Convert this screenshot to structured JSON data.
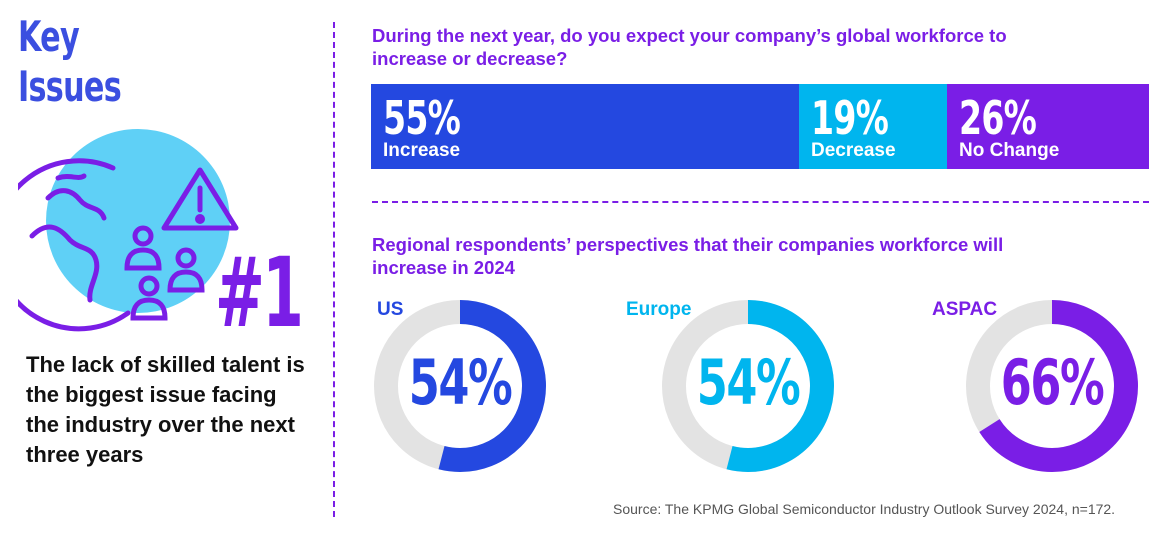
{
  "header": {
    "title_line1": "Key",
    "title_line2": "Issues"
  },
  "key_issue": {
    "rank": "#1",
    "text": "The lack of skilled talent is the biggest issue facing the industry over the next three years"
  },
  "colors": {
    "blue": "#2448e0",
    "cyan": "#00b5ee",
    "purple": "#7a1ee6",
    "track": "#e3e3e3",
    "light_cyan": "#5fd0f6"
  },
  "icons": [
    "globe-icon",
    "warning-icon",
    "people-icon"
  ],
  "question1": "During the next year, do you expect your company’s global workforce to increase or decrease?",
  "question2": "Regional respondents’ perspectives that their companies workforce will increase in 2024",
  "source": "Source: The KPMG Global Semiconductor Industry Outlook Survey 2024, n=172.",
  "chart_data": [
    {
      "type": "bar",
      "stacked": true,
      "orientation": "horizontal",
      "title": "During the next year, do you expect your company’s global workforce to increase or decrease?",
      "categories": [
        "Increase",
        "Decrease",
        "No Change"
      ],
      "values": [
        55,
        19,
        26
      ],
      "value_labels": [
        "55%",
        "19%",
        "26%"
      ],
      "colors": [
        "#2448e0",
        "#00b5ee",
        "#7a1ee6"
      ]
    },
    {
      "type": "pie",
      "donut": true,
      "title": "Regional respondents’ perspectives that their companies workforce will increase in 2024",
      "series": [
        {
          "name": "US",
          "value": 54,
          "label": "54%",
          "color": "#2448e0"
        },
        {
          "name": "Europe",
          "value": 54,
          "label": "54%",
          "color": "#00b5ee"
        },
        {
          "name": "ASPAC",
          "value": 66,
          "label": "66%",
          "color": "#7a1ee6"
        }
      ]
    }
  ]
}
